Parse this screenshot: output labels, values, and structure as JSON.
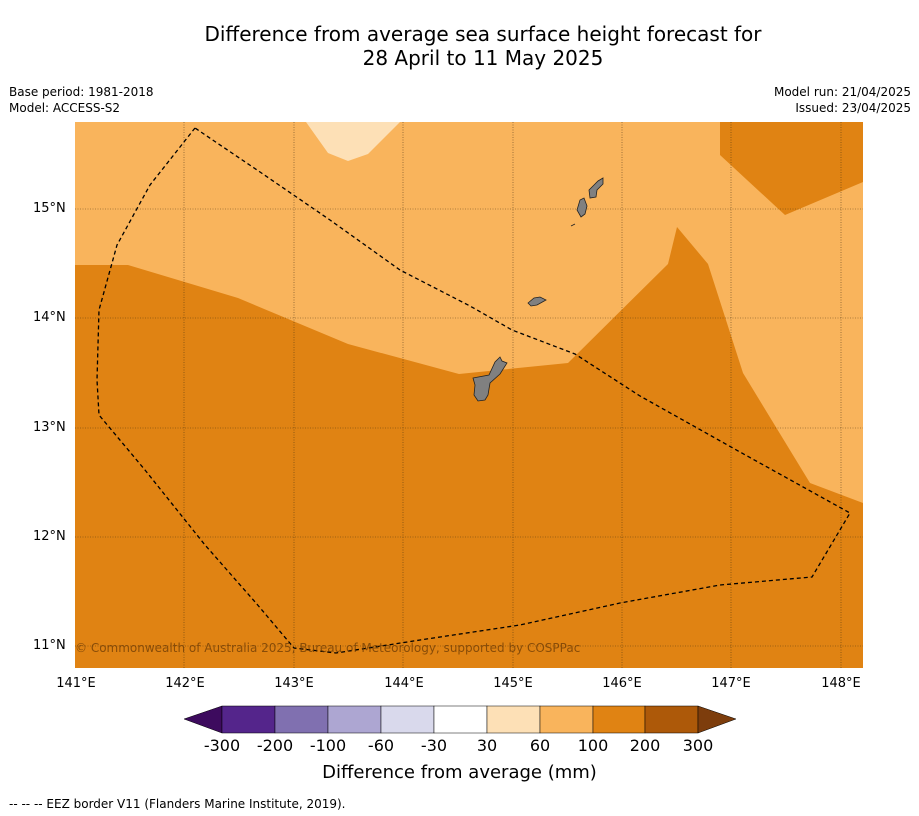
{
  "title_line1": "Difference from average sea surface height forecast for",
  "title_line2": "28 April to 11 May 2025",
  "meta_left": [
    "Base period: 1981-2018",
    "Model: ACCESS-S2"
  ],
  "meta_right": [
    "Model run: 21/04/2025",
    "Issued: 23/04/2025"
  ],
  "copyright": "© Commonwealth of Australia 2025, Bureau of Meteorology, supported by COSPPac",
  "lat_labels": [
    "15°N",
    "14°N",
    "13°N",
    "12°N",
    "11°N"
  ],
  "lon_labels": [
    "141°E",
    "142°E",
    "143°E",
    "144°E",
    "145°E",
    "146°E",
    "147°E",
    "148°E"
  ],
  "colorbar": {
    "ticks": [
      "-300",
      "-200",
      "-100",
      "-60",
      "-30",
      "30",
      "60",
      "100",
      "200",
      "300"
    ],
    "colors": [
      "#3d0b5e",
      "#54258b",
      "#8070b0",
      "#ada6d2",
      "#d9d9ec",
      "#ffffff",
      "#fde0b6",
      "#f9b45c",
      "#e08313",
      "#ad5909",
      "#7d3d0c"
    ],
    "title": "Difference from average (mm)"
  },
  "footnote": "--  --  -- EEZ border V11 (Flanders Marine Institute, 2019).",
  "map": {
    "colors": {
      "light": "#fde0b6",
      "mid": "#f9b45c",
      "dark": "#e08313",
      "land": "#808080"
    },
    "lon_range": [
      141,
      148.2
    ],
    "lat_range": [
      10.8,
      15.8
    ]
  }
}
